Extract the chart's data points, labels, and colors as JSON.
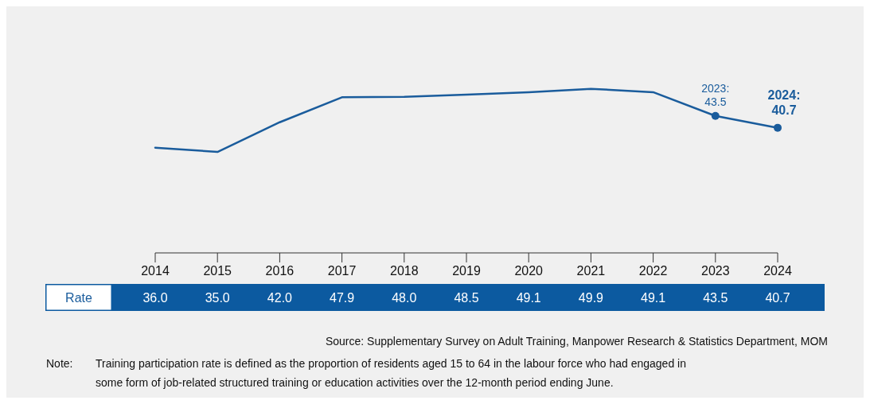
{
  "chart_data": {
    "type": "line",
    "categories": [
      "2014",
      "2015",
      "2016",
      "2017",
      "2018",
      "2019",
      "2020",
      "2021",
      "2022",
      "2023",
      "2024"
    ],
    "series": [
      {
        "name": "Rate",
        "color": "#1a5c9c",
        "values": [
          36.0,
          35.0,
          42.0,
          47.9,
          48.0,
          48.5,
          49.1,
          49.9,
          49.1,
          43.5,
          40.7
        ],
        "value_labels": [
          "36.0",
          "35.0",
          "42.0",
          "47.9",
          "48.0",
          "48.5",
          "49.1",
          "49.9",
          "49.1",
          "43.5",
          "40.7"
        ]
      },
      {
        "type": "scatter",
        "color": "#1a5c9c",
        "values": [
          null,
          null,
          null,
          null,
          null,
          null,
          null,
          null,
          null,
          43.5,
          40.7
        ]
      }
    ],
    "line_style": "solid",
    "tick_labels": "x",
    "annotations": [
      {
        "text": "2023: 43.5",
        "x": "2023",
        "y": 43.5
      },
      {
        "text": "2024: 40.7",
        "x": "2024",
        "y": 40.7
      },
      "Source: Supplementary Survey on Adult Training, Manpower Research & Statistics Department, MOM",
      "Note:\tTraining participation rate is defined as the proportion of residents aged 15 to 64 in the labour force who had engaged in some form of job-related structured training or education activities over the 12-month period ending June."
    ]
  }
}
